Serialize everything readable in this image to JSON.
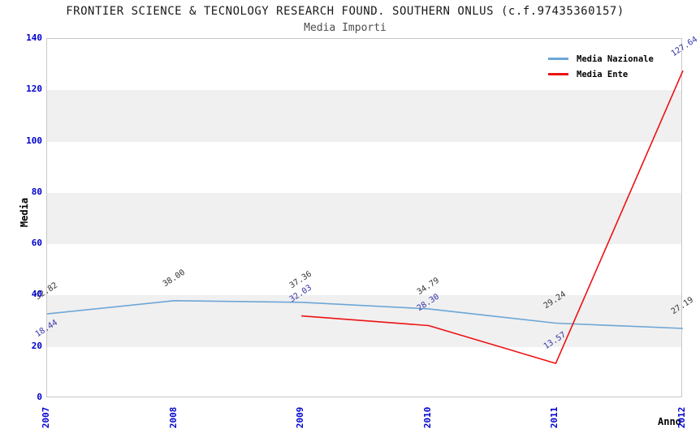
{
  "title": "FRONTIER SCIENCE & TECNOLOGY RESEARCH FOUND. SOUTHERN ONLUS (c.f.97435360157)",
  "subtitle": "Media Importi",
  "colors": {
    "nazionale_line": "#6CA6D6",
    "ente_line": "#EE1111",
    "axis_tick_text": "#0000CC",
    "band_gray": "#F0F0F0",
    "plot_border": "#C9C9C9",
    "nazionale_label_text": "#333333",
    "ente_label_text": "#3333AA"
  },
  "chart_data": {
    "type": "line",
    "x": [
      "2007",
      "2008",
      "2009",
      "2010",
      "2011",
      "2012"
    ],
    "xlabel": "Anno",
    "ylabel": "Media",
    "ylim": [
      0,
      140
    ],
    "yticks": [
      0,
      20,
      40,
      60,
      80,
      100,
      120,
      140
    ],
    "gray_bands": [
      [
        20,
        40
      ],
      [
        60,
        80
      ],
      [
        100,
        120
      ]
    ],
    "grid": false,
    "legend_position": "top-right-inside",
    "series": [
      {
        "name": "Media Nazionale",
        "color": "#6CA6D6",
        "label_color": "#333333",
        "values": [
          32.82,
          38.0,
          37.36,
          34.79,
          29.24,
          27.19
        ],
        "labels": [
          "32.82",
          "38.00",
          "37.36",
          "34.79",
          "29.24",
          "27.19"
        ]
      },
      {
        "name": "Media Ente",
        "color": "#EE1111",
        "label_color": "#3333AA",
        "values": [
          18.44,
          null,
          32.03,
          28.3,
          13.57,
          127.64
        ],
        "labels": [
          "18.44",
          null,
          "32.03",
          "28.30",
          "13.57",
          "127.64"
        ]
      }
    ]
  }
}
